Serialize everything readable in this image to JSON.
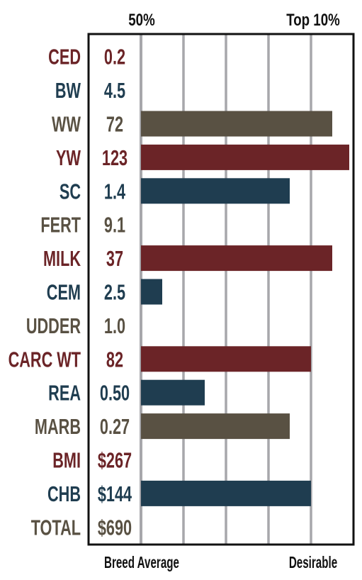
{
  "colors": {
    "red": "#6b2427",
    "blue": "#1f3d50",
    "brown": "#595143",
    "grid": "#a7a7ab",
    "frame": "#111111"
  },
  "chart_data": {
    "type": "bar",
    "orientation": "horizontal",
    "header_left": "50%",
    "header_right": "Top 10%",
    "footer_left": "Breed Average",
    "footer_right": "Desirable",
    "scale": {
      "min": 0,
      "max": 5,
      "gridlines": [
        0,
        1,
        2,
        3,
        4,
        5
      ]
    },
    "rows": [
      {
        "trait": "CED",
        "value_label": "0.2",
        "bar": 0,
        "color": "red"
      },
      {
        "trait": "BW",
        "value_label": "4.5",
        "bar": 0,
        "color": "blue"
      },
      {
        "trait": "WW",
        "value_label": "72",
        "bar": 4.5,
        "color": "brown"
      },
      {
        "trait": "YW",
        "value_label": "123",
        "bar": 4.9,
        "color": "red"
      },
      {
        "trait": "SC",
        "value_label": "1.4",
        "bar": 3.5,
        "color": "blue"
      },
      {
        "trait": "FERT",
        "value_label": "9.1",
        "bar": 0,
        "color": "brown"
      },
      {
        "trait": "MILK",
        "value_label": "37",
        "bar": 4.5,
        "color": "red"
      },
      {
        "trait": "CEM",
        "value_label": "2.5",
        "bar": 0.5,
        "color": "blue"
      },
      {
        "trait": "UDDER",
        "value_label": "1.0",
        "bar": 0,
        "color": "brown"
      },
      {
        "trait": "CARC WT",
        "value_label": "82",
        "bar": 4.0,
        "color": "red"
      },
      {
        "trait": "REA",
        "value_label": "0.50",
        "bar": 1.5,
        "color": "blue"
      },
      {
        "trait": "MARB",
        "value_label": "0.27",
        "bar": 3.5,
        "color": "brown"
      },
      {
        "trait": "BMI",
        "value_label": "$267",
        "bar": 0,
        "color": "red"
      },
      {
        "trait": "CHB",
        "value_label": "$144",
        "bar": 4.0,
        "color": "blue"
      },
      {
        "trait": "TOTAL",
        "value_label": "$690",
        "bar": 0,
        "color": "brown"
      }
    ]
  }
}
